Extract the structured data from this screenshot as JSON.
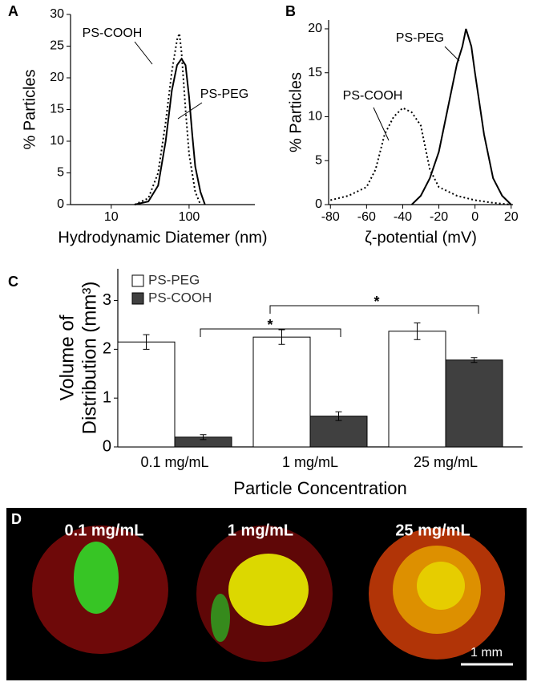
{
  "chart_data": [
    {
      "type": "line",
      "panel": "A",
      "xlabel": "Hydrodynamic Diatemer (nm)",
      "ylabel": "% Particles",
      "xscale": "log",
      "xlim": [
        3,
        700
      ],
      "xticks": [
        10,
        100
      ],
      "ylim": [
        0,
        30
      ],
      "yticks": [
        0,
        5,
        10,
        15,
        20,
        25,
        30
      ],
      "annotations": [
        "PS-COOH",
        "PS-PEG"
      ],
      "series": [
        {
          "name": "PS-COOH",
          "color": "#000000",
          "dash": "dotted",
          "x": [
            20,
            30,
            40,
            50,
            60,
            70,
            75,
            80,
            90,
            100,
            120,
            140
          ],
          "values": [
            0,
            1,
            5,
            13,
            21,
            26,
            27,
            24,
            15,
            8,
            2,
            0
          ]
        },
        {
          "name": "PS-PEG",
          "color": "#000000",
          "dash": "solid",
          "x": [
            20,
            30,
            40,
            50,
            60,
            70,
            80,
            90,
            100,
            110,
            120,
            140,
            160
          ],
          "values": [
            0,
            0.5,
            3,
            10,
            18,
            22,
            23,
            22,
            17,
            11,
            6,
            2,
            0
          ]
        }
      ]
    },
    {
      "type": "line",
      "panel": "B",
      "xlabel": "ζ-potential (mV)",
      "ylabel": "% Particles",
      "xscale": "linear",
      "xlim": [
        -81,
        21
      ],
      "xticks": [
        -80,
        -60,
        -40,
        -20,
        0,
        20
      ],
      "ylim": [
        0,
        21
      ],
      "yticks": [
        0,
        5,
        10,
        15,
        20
      ],
      "annotations": [
        "PS-PEG",
        "PS-COOH"
      ],
      "series": [
        {
          "name": "PS-PEG",
          "color": "#000000",
          "dash": "solid",
          "x": [
            -35,
            -30,
            -25,
            -20,
            -15,
            -10,
            -7,
            -5,
            -2,
            0,
            5,
            10,
            15,
            20
          ],
          "values": [
            0,
            1,
            3,
            6,
            11,
            16,
            18,
            20,
            18,
            15,
            8,
            3,
            1,
            0
          ]
        },
        {
          "name": "PS-COOH",
          "color": "#000000",
          "dash": "dotted",
          "x": [
            -80,
            -70,
            -60,
            -55,
            -50,
            -45,
            -40,
            -35,
            -30,
            -28,
            -25,
            -20,
            -10,
            0,
            10,
            20
          ],
          "values": [
            0.5,
            1,
            2,
            4,
            8,
            10,
            11,
            10.5,
            9,
            7,
            4,
            2,
            1,
            0.5,
            0.2,
            0
          ]
        }
      ]
    },
    {
      "type": "bar",
      "panel": "C",
      "xlabel": "Particle Concentration",
      "ylabel": [
        "Volume of",
        "Distribution (mm³)"
      ],
      "categories": [
        "0.1 mg/mL",
        "1 mg/mL",
        "25 mg/mL"
      ],
      "ylim": [
        0,
        3.65
      ],
      "yticks": [
        0,
        1,
        2,
        3
      ],
      "significance": [
        "*",
        "*"
      ],
      "series": [
        {
          "name": "PS-PEG",
          "color": "#ffffff",
          "values": [
            2.15,
            2.25,
            2.37
          ],
          "errors": [
            0.15,
            0.15,
            0.17
          ]
        },
        {
          "name": "PS-COOH",
          "color": "#404040",
          "values": [
            0.2,
            0.63,
            1.78
          ],
          "errors": [
            0.05,
            0.09,
            0.05
          ]
        }
      ]
    }
  ],
  "panel_d": {
    "letter": "D",
    "labels": [
      "0.1 mg/mL",
      "1 mg/mL",
      "25 mg/mL"
    ],
    "scale_bar": "1 mm"
  }
}
